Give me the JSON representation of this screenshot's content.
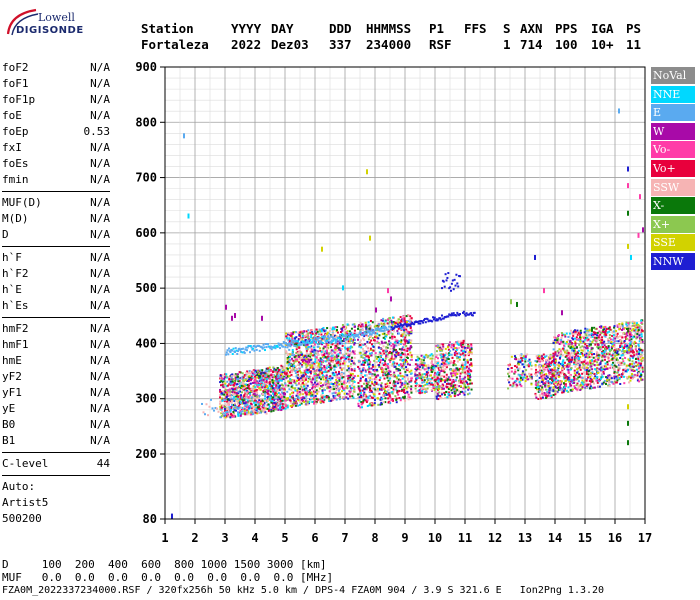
{
  "logo": {
    "line1": "Lowell",
    "line2": "DIGISONDE"
  },
  "header": {
    "row1": [
      "Station",
      "YYYY",
      "DAY",
      "DDD",
      "HHMMSS",
      "P1",
      "FFS",
      "S",
      "AXN",
      "PPS",
      "IGA",
      "PS"
    ],
    "row2": [
      "Fortaleza",
      "2022",
      "Dez03",
      "337",
      "234000",
      "RSF",
      "1",
      "714",
      "100",
      "10+",
      "11"
    ]
  },
  "params": {
    "group1": [
      {
        "name": "foF2",
        "value": "N/A"
      },
      {
        "name": "foF1",
        "value": "N/A"
      },
      {
        "name": "foF1p",
        "value": "N/A"
      },
      {
        "name": "foE",
        "value": "N/A"
      },
      {
        "name": "foEp",
        "value": "0.53"
      },
      {
        "name": "fxI",
        "value": "N/A"
      },
      {
        "name": "foEs",
        "value": "N/A"
      },
      {
        "name": "fmin",
        "value": "N/A"
      }
    ],
    "group2": [
      {
        "name": "MUF(D)",
        "value": "N/A"
      },
      {
        "name": "M(D)",
        "value": "N/A"
      },
      {
        "name": "D",
        "value": "N/A"
      }
    ],
    "group3": [
      {
        "name": "h`F",
        "value": "N/A"
      },
      {
        "name": "h`F2",
        "value": "N/A"
      },
      {
        "name": "h`E",
        "value": "N/A"
      },
      {
        "name": "h`Es",
        "value": "N/A"
      }
    ],
    "group4": [
      {
        "name": "hmF2",
        "value": "N/A"
      },
      {
        "name": "hmF1",
        "value": "N/A"
      },
      {
        "name": "hmE",
        "value": "N/A"
      },
      {
        "name": "yF2",
        "value": "N/A"
      },
      {
        "name": "yF1",
        "value": "N/A"
      },
      {
        "name": "yE",
        "value": "N/A"
      },
      {
        "name": "B0",
        "value": "N/A"
      },
      {
        "name": "B1",
        "value": "N/A"
      }
    ],
    "clevel": {
      "name": "C-level",
      "value": "44"
    },
    "auto": [
      "Auto:",
      "Artist5",
      "500200"
    ]
  },
  "legend": [
    {
      "label": "NoVal",
      "color": "#8c8c8c"
    },
    {
      "label": "NNE",
      "color": "#00d8ff"
    },
    {
      "label": "E",
      "color": "#5aaaf0"
    },
    {
      "label": "W",
      "color": "#a80aa8"
    },
    {
      "label": "Vo-",
      "color": "#ff3ca8"
    },
    {
      "label": "Vo+",
      "color": "#e8003c"
    },
    {
      "label": "SSW",
      "color": "#f6b4b4"
    },
    {
      "label": "X-",
      "color": "#0a780a"
    },
    {
      "label": "X+",
      "color": "#8cc850"
    },
    {
      "label": "SSE",
      "color": "#d2d200"
    },
    {
      "label": "NNW",
      "color": "#1e1ed2"
    }
  ],
  "axes": {
    "y_ticks": [
      "900",
      "800",
      "700",
      "600",
      "500",
      "400",
      "300",
      "200",
      "80"
    ],
    "x_ticks": [
      "1",
      "2",
      "3",
      "4",
      "5",
      "6",
      "7",
      "8",
      "9",
      "10",
      "11",
      "12",
      "13",
      "14",
      "15",
      "16",
      "17"
    ]
  },
  "footer": {
    "d_line": "D     100  200  400  600  800 1000 1500 3000 [km]",
    "muf_line": "MUF   0.0  0.0  0.0  0.0  0.0  0.0  0.0  0.0 [MHz]",
    "file_line": "FZA0M_2022337234000.RSF / 320fx256h 50 kHz 5.0 km / DPS-4 FZA0M 904 / 3.9 S 321.6 E   Ion2Png 1.3.20"
  }
}
